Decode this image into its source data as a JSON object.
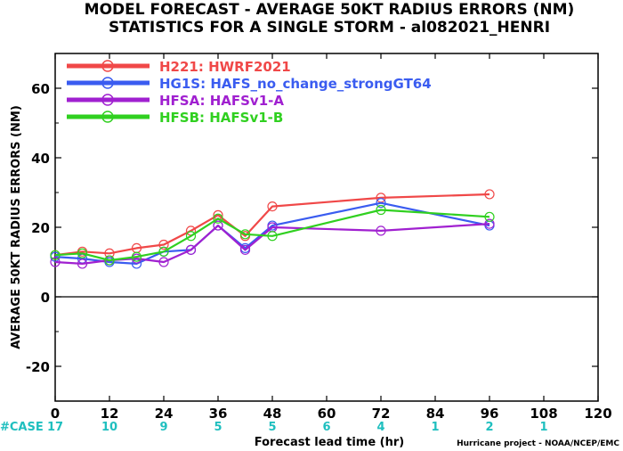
{
  "title": "MODEL FORECAST - AVERAGE 50KT RADIUS ERRORS (NM)",
  "subtitle": "STATISTICS FOR A SINGLE STORM - al082021_HENRI",
  "credit": "Hurricane project - NOAA/NCEP/EMC",
  "chart_data": {
    "type": "line",
    "xlabel": "Forecast lead time (hr)",
    "ylabel": "AVERAGE 50KT RADIUS ERRORS (NM)",
    "xlim": [
      0,
      120
    ],
    "ylim": [
      -30,
      70
    ],
    "x_ticks": [
      0,
      12,
      24,
      36,
      48,
      60,
      72,
      84,
      96,
      108,
      120
    ],
    "y_ticks": [
      -20,
      0,
      20,
      40,
      60
    ],
    "zero_line": true,
    "grid": false,
    "legend_position": "top-left",
    "case_label": "#CASE",
    "cases": [
      {
        "x": 0,
        "label": "17"
      },
      {
        "x": 12,
        "label": "10"
      },
      {
        "x": 24,
        "label": "9"
      },
      {
        "x": 36,
        "label": "5"
      },
      {
        "x": 48,
        "label": "5"
      },
      {
        "x": 60,
        "label": "6"
      },
      {
        "x": 72,
        "label": "4"
      },
      {
        "x": 84,
        "label": "1"
      },
      {
        "x": 96,
        "label": "2"
      },
      {
        "x": 108,
        "label": "1"
      }
    ],
    "series": [
      {
        "name": "H221: HWRF2021",
        "color": "#f04848",
        "points": [
          [
            0,
            12.0
          ],
          [
            6,
            13.0
          ],
          [
            12,
            12.5
          ],
          [
            18,
            14.0
          ],
          [
            24,
            15.0
          ],
          [
            30,
            19.0
          ],
          [
            36,
            23.5
          ],
          [
            42,
            17.5
          ],
          [
            48,
            26.0
          ],
          [
            72,
            28.5
          ],
          [
            96,
            29.5
          ]
        ]
      },
      {
        "name": "HG1S: HAFS_no_change_strongGT64",
        "color": "#3a5cf0",
        "points": [
          [
            0,
            11.5
          ],
          [
            6,
            11.0
          ],
          [
            12,
            10.0
          ],
          [
            18,
            9.5
          ],
          [
            24,
            13.0
          ],
          [
            30,
            13.5
          ],
          [
            36,
            20.5
          ],
          [
            42,
            14.0
          ],
          [
            48,
            20.5
          ],
          [
            72,
            27.0
          ],
          [
            96,
            20.5
          ]
        ]
      },
      {
        "name": "HFSA: HAFSv1-A",
        "color": "#a020d0",
        "points": [
          [
            0,
            10.0
          ],
          [
            6,
            9.5
          ],
          [
            12,
            10.5
          ],
          [
            18,
            11.0
          ],
          [
            24,
            10.0
          ],
          [
            30,
            13.5
          ],
          [
            36,
            20.5
          ],
          [
            42,
            13.5
          ],
          [
            48,
            20.0
          ],
          [
            72,
            19.0
          ],
          [
            96,
            21.0
          ]
        ]
      },
      {
        "name": "HFSB: HAFSv1-B",
        "color": "#30d020",
        "points": [
          [
            0,
            12.0
          ],
          [
            6,
            12.5
          ],
          [
            12,
            10.5
          ],
          [
            18,
            11.5
          ],
          [
            24,
            13.0
          ],
          [
            30,
            17.5
          ],
          [
            36,
            22.5
          ],
          [
            42,
            18.0
          ],
          [
            48,
            17.5
          ],
          [
            72,
            25.0
          ],
          [
            96,
            23.0
          ]
        ]
      }
    ]
  }
}
